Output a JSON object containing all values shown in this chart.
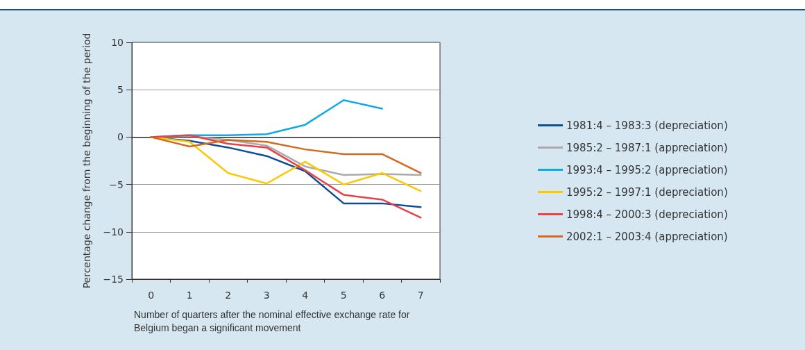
{
  "chart_data": {
    "type": "line",
    "xlabel": "Number of quarters after the nominal effective exchange rate for Belgium began a significant movement",
    "ylabel": "Percentage change from the beginning of the period",
    "categories": [
      "0",
      "1",
      "2",
      "3",
      "4",
      "5",
      "6",
      "7"
    ],
    "series": [
      {
        "name": "1981:4 – 1983:3 (depreciation)",
        "color": "#0d4d96",
        "values": [
          0,
          -0.4,
          -1.1,
          -2.0,
          -3.6,
          -7.0,
          -7.0,
          -7.4
        ]
      },
      {
        "name": "1985:2 – 1987:1 (appreciation)",
        "color": "#aaaaaa",
        "values": [
          0,
          0.1,
          -0.3,
          -0.9,
          -3.1,
          -4.0,
          -3.9,
          -4.0
        ]
      },
      {
        "name": "1993:4 – 1995:2 (appreciation)",
        "color": "#12a8e3",
        "values": [
          0,
          0.2,
          0.2,
          0.3,
          1.3,
          3.9,
          3.0,
          null
        ]
      },
      {
        "name": "1995:2 – 1997:1 (depreciation)",
        "color": "#fcc800",
        "values": [
          0,
          -0.5,
          -3.8,
          -4.9,
          -2.6,
          -5.0,
          -3.8,
          -5.7
        ]
      },
      {
        "name": "1998:4 – 2000:3 (depreciation)",
        "color": "#e8414a",
        "values": [
          0,
          0.2,
          -0.7,
          -1.1,
          -3.5,
          -6.1,
          -6.6,
          -8.5
        ]
      },
      {
        "name": "2002:1 – 2003:4 (appreciation)",
        "color": "#d2691e",
        "values": [
          0,
          -1.0,
          -0.3,
          -0.5,
          -1.3,
          -1.8,
          -1.8,
          -3.8
        ]
      }
    ],
    "ylim": [
      -15,
      10
    ],
    "yticks": [
      -15,
      -10,
      -5,
      0,
      5,
      10
    ],
    "grid": "y",
    "legend": "right",
    "marker": "none",
    "line_style": "solid"
  }
}
